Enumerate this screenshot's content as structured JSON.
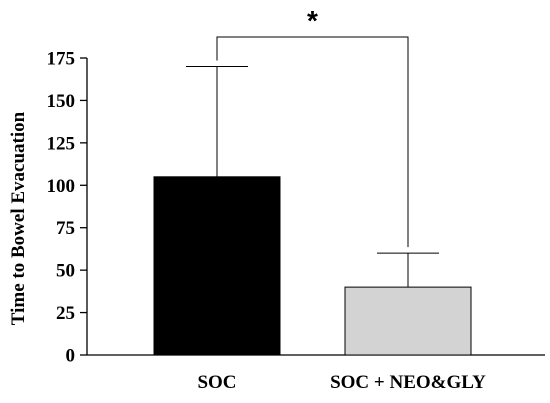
{
  "chart_data": {
    "type": "bar",
    "title": "",
    "xlabel": "",
    "ylabel": "Time to Bowel Evacuation",
    "ylim": [
      0,
      175
    ],
    "yticks": [
      0,
      25,
      50,
      75,
      100,
      125,
      150,
      175
    ],
    "categories": [
      "SOC",
      "SOC + NEO&GLY"
    ],
    "values": [
      105,
      40
    ],
    "errors_upper": [
      65,
      20
    ],
    "bar_colors": [
      "#000000",
      "#d3d3d3"
    ],
    "bar_edge_color": "#000000",
    "grid": false,
    "legend": "none",
    "significance": {
      "label": "*",
      "between": [
        0,
        1
      ]
    }
  }
}
